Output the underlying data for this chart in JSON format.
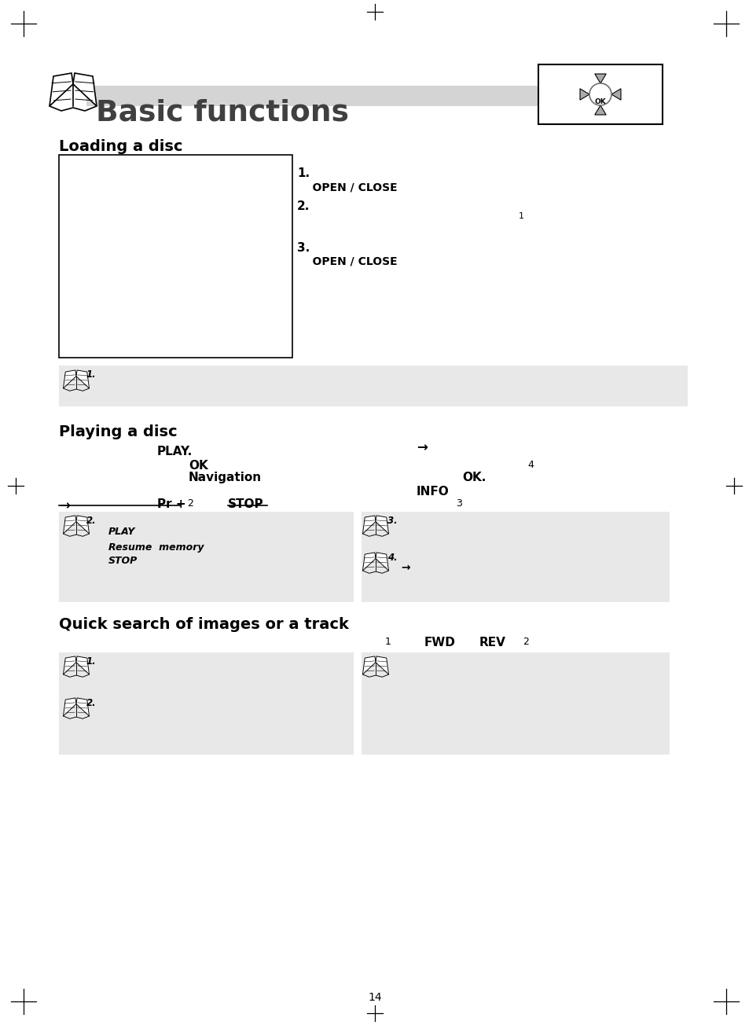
{
  "page_bg": "#ffffff",
  "title": "Basic functions",
  "title_color": "#404040",
  "section1": "Loading a disc",
  "section2": "Playing a disc",
  "section3": "Quick search of images or a track",
  "note_bg": "#e8e8e8",
  "page_number": "14",
  "arrow": "→",
  "fwd_label": "FWD",
  "rev_label": "REV",
  "gray_bar_color": "#d4d4d4",
  "underline_color": "#000000",
  "text_color": "#222222",
  "bold_color": "#111111",
  "section_color": "#000000"
}
